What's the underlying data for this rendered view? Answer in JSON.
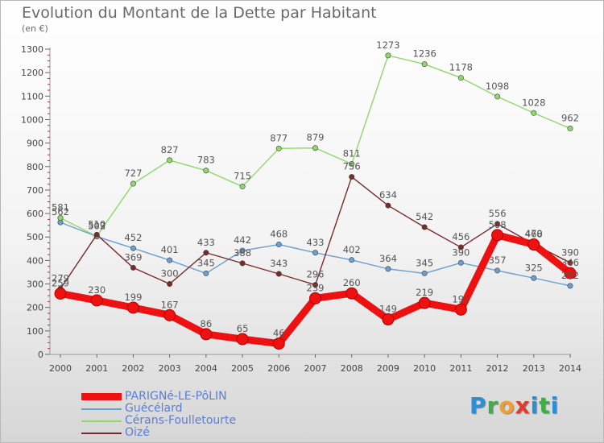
{
  "chart_data": {
    "type": "line",
    "title": "Evolution du Montant de la Dette par Habitant",
    "subtitle": "(en €)",
    "ylim": [
      0,
      1300
    ],
    "yticks": [
      0,
      100,
      200,
      300,
      400,
      500,
      600,
      700,
      800,
      900,
      1000,
      1100,
      1200,
      1300
    ],
    "x": [
      "2000",
      "2001",
      "2002",
      "2003",
      "2004",
      "2005",
      "2006",
      "2007",
      "2008",
      "2009",
      "2010",
      "2011",
      "2012",
      "2013",
      "2014"
    ],
    "grid": false,
    "legend_position": "bottom-left",
    "series": [
      {
        "name": "PARIGNé-LE-PôLIN",
        "color": "#ee1111",
        "emphasis": true,
        "values": [
          259,
          230,
          199,
          167,
          86,
          65,
          46,
          239,
          260,
          149,
          219,
          191,
          508,
          468,
          346
        ],
        "labels": [
          "259",
          "230",
          "199",
          "167",
          "86",
          "65",
          "46",
          "239",
          "260",
          "149",
          "219",
          "191",
          "508",
          "468",
          "346"
        ]
      },
      {
        "name": "Guécélard",
        "color": "#6a9fd0",
        "emphasis": false,
        "values": [
          562,
          502,
          452,
          401,
          345,
          442,
          468,
          433,
          402,
          364,
          345,
          390,
          357,
          325,
          292
        ],
        "labels": [
          "562",
          "502",
          "452",
          "401",
          "345",
          "442",
          "468",
          "433",
          "402",
          "364",
          "345",
          "390",
          "357",
          "325",
          "292"
        ]
      },
      {
        "name": "Cérans-Foulletourte",
        "color": "#90d86a",
        "emphasis": false,
        "values": [
          581,
          503,
          727,
          827,
          783,
          715,
          877,
          879,
          811,
          1273,
          1236,
          1178,
          1098,
          1028,
          962
        ],
        "labels": [
          "581",
          "503",
          "727",
          "827",
          "783",
          "715",
          "877",
          "879",
          "811",
          "1273",
          "1236",
          "1178",
          "1098",
          "1028",
          "962"
        ]
      },
      {
        "name": "Oizé",
        "color": "#7a2a2a",
        "emphasis": false,
        "values": [
          279,
          510,
          369,
          300,
          433,
          388,
          343,
          296,
          756,
          634,
          542,
          456,
          556,
          470,
          390
        ],
        "labels": [
          "279",
          "510",
          "369",
          "300",
          "433",
          "388",
          "343",
          "296",
          "756",
          "634",
          "542",
          "456",
          "556",
          "470",
          "390"
        ]
      }
    ]
  },
  "brand": {
    "letters": [
      "P",
      "r",
      "o",
      "x",
      "i",
      "t",
      "i"
    ],
    "colors": [
      "#2b8fd6",
      "#3fae49",
      "#f0a030",
      "#e23b2e",
      "#2b8fd6",
      "#3fae49",
      "#2b8fd6"
    ]
  }
}
